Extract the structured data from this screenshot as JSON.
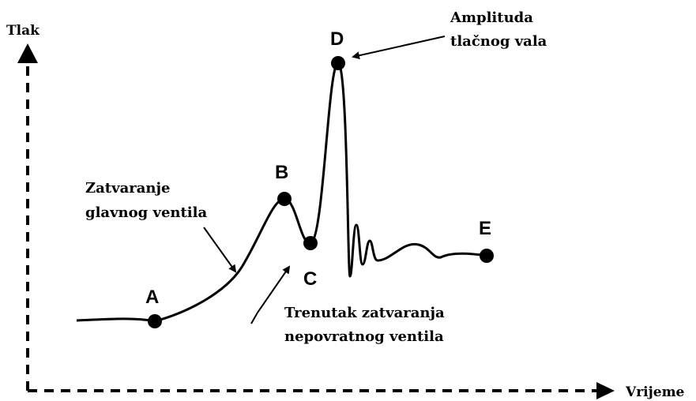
{
  "axes": {
    "y": "Tlak",
    "x": "Vrijeme"
  },
  "points": [
    {
      "label": "A"
    },
    {
      "label": "B"
    },
    {
      "label": "C"
    },
    {
      "label": "D"
    },
    {
      "label": "E"
    }
  ],
  "annotations": [
    {
      "lines": [
        "Amplituda",
        "tlačnog vala"
      ]
    },
    {
      "lines": [
        "Zatvaranje",
        "glavnog ventila"
      ]
    },
    {
      "lines": [
        "Trenutak zatvaranja",
        "nepovratnog ventila"
      ]
    }
  ]
}
